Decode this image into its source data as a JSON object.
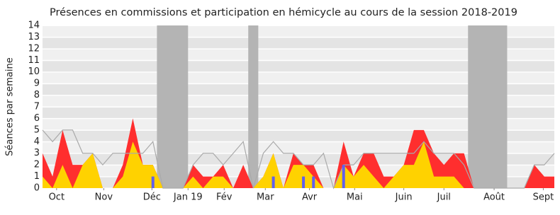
{
  "chart_data": {
    "type": "activity",
    "title": "Présences en commissions et participation en hémicycle au cours de la session 2018-2019",
    "y_label": "Séances par semaine",
    "x": [
      0,
      1,
      2,
      3,
      4,
      5,
      6,
      7,
      8,
      9,
      10,
      11,
      12,
      13,
      14,
      15,
      16,
      17,
      18,
      19,
      20,
      21,
      22,
      23,
      24,
      25,
      26,
      27,
      28,
      29,
      30,
      31,
      32,
      33,
      34,
      35,
      36,
      37,
      38,
      39,
      40,
      41,
      42,
      43,
      44,
      45,
      46,
      47,
      48,
      49,
      50,
      51
    ],
    "xlim": [
      0,
      51
    ],
    "xticks": [
      {
        "value": 1.4,
        "label": "Oct"
      },
      {
        "value": 6.1,
        "label": "Nov"
      },
      {
        "value": 10.9,
        "label": "Déc"
      },
      {
        "value": 14.5,
        "label": "Jan 19"
      },
      {
        "value": 18.1,
        "label": "Fév"
      },
      {
        "value": 22.2,
        "label": "Mar"
      },
      {
        "value": 26.6,
        "label": "Avr"
      },
      {
        "value": 31.1,
        "label": "Mai"
      },
      {
        "value": 36,
        "label": "Juin"
      },
      {
        "value": 40,
        "label": "Juil"
      },
      {
        "value": 45,
        "label": "Août"
      },
      {
        "value": 49.9,
        "label": "Sept"
      }
    ],
    "ylim": [
      0,
      14
    ],
    "yticks": [
      0,
      1,
      2,
      3,
      4,
      5,
      6,
      7,
      8,
      9,
      10,
      11,
      12,
      13,
      14
    ],
    "vacations": [
      [
        11.4,
        14.5
      ],
      [
        20.5,
        21.5
      ],
      [
        42.4,
        46.3
      ]
    ],
    "series": [
      {
        "kind": "area",
        "color": "#ff2e2e",
        "values": [
          3,
          1,
          5,
          2,
          2,
          3,
          0,
          0,
          2,
          6,
          2,
          2,
          0,
          0,
          0,
          2,
          1,
          1,
          2,
          0,
          2,
          0,
          1,
          3,
          0,
          3,
          2,
          2,
          0,
          0,
          4,
          1,
          3,
          3,
          1,
          1,
          2,
          5,
          5,
          3,
          2,
          3,
          3,
          0,
          0,
          0,
          0,
          0,
          0,
          2,
          1,
          1
        ]
      },
      {
        "kind": "area",
        "color": "#ffd200",
        "values": [
          1,
          0,
          2,
          0,
          2,
          3,
          0,
          0,
          1,
          4,
          2,
          2,
          0,
          0,
          0,
          1,
          0,
          1,
          1,
          0,
          0,
          0,
          1,
          3,
          0,
          2,
          2,
          1,
          0,
          0,
          2,
          1,
          2,
          1,
          0,
          1,
          2,
          2,
          4,
          1,
          1,
          1,
          0,
          0,
          0,
          0,
          0,
          0,
          0,
          0,
          0,
          0
        ]
      },
      {
        "kind": "line",
        "color": "#aaaaaa",
        "values": [
          5,
          4,
          5,
          5,
          3,
          3,
          2,
          3,
          3,
          3,
          3,
          4,
          0,
          0,
          0,
          2,
          3,
          3,
          2,
          3,
          4,
          0,
          3,
          4,
          3,
          3,
          2,
          2,
          3,
          0,
          2,
          2,
          3,
          3,
          3,
          3,
          3,
          3,
          4,
          3,
          3,
          3,
          2,
          0,
          0,
          0,
          0,
          0,
          0,
          2,
          2,
          3
        ]
      },
      {
        "kind": "bar",
        "color": "#6060ee",
        "values": [
          0,
          0,
          0,
          0,
          0,
          0,
          0,
          0,
          0,
          0,
          0,
          1,
          0,
          0,
          0,
          0,
          0,
          0,
          0,
          0,
          0,
          0,
          0,
          1,
          0,
          0,
          1,
          1,
          0,
          0,
          2,
          0,
          0,
          0,
          0,
          0,
          0,
          0,
          0,
          0,
          0,
          0,
          0,
          0,
          0,
          0,
          0,
          0,
          0,
          0,
          0,
          0
        ]
      }
    ]
  }
}
